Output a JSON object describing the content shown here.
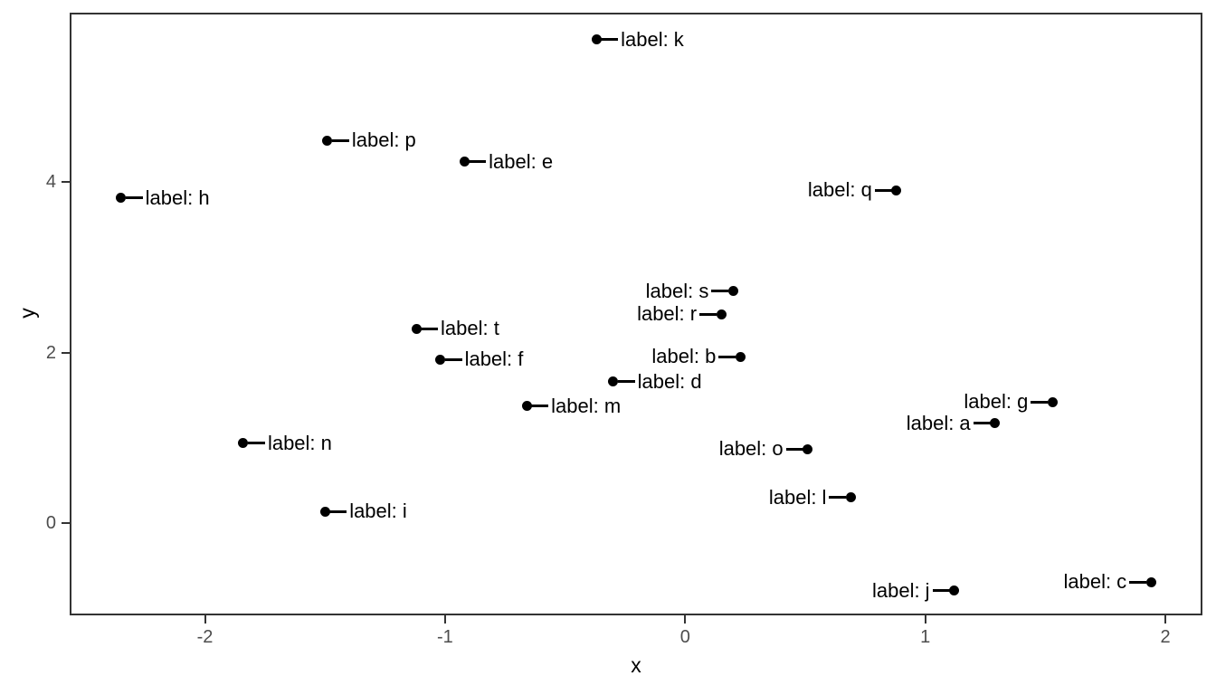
{
  "chart_data": {
    "type": "scatter",
    "title": "",
    "xlabel": "x",
    "ylabel": "y",
    "x_ticks": [
      -2,
      -1,
      0,
      1,
      2
    ],
    "y_ticks": [
      0,
      2,
      4
    ],
    "xlim": [
      -2.56,
      2.16
    ],
    "ylim": [
      -1.07,
      5.98
    ],
    "grid": false,
    "legend": "none",
    "point_color": "#000000",
    "label_color": "#000000",
    "axis_text_color": "#4d4d4d",
    "border_color": "#333333",
    "background": "#ffffff",
    "points": [
      {
        "name": "a",
        "label": "label: a",
        "x": 1.29,
        "y": 1.17,
        "label_side": "left"
      },
      {
        "name": "b",
        "label": "label: b",
        "x": 0.23,
        "y": 1.95,
        "label_side": "left"
      },
      {
        "name": "c",
        "label": "label: c",
        "x": 1.94,
        "y": -0.69,
        "label_side": "left"
      },
      {
        "name": "d",
        "label": "label: d",
        "x": -0.3,
        "y": 1.66,
        "label_side": "right"
      },
      {
        "name": "e",
        "label": "label: e",
        "x": -0.92,
        "y": 4.23,
        "label_side": "right"
      },
      {
        "name": "f",
        "label": "label: f",
        "x": -1.02,
        "y": 1.92,
        "label_side": "right"
      },
      {
        "name": "g",
        "label": "label: g",
        "x": 1.53,
        "y": 1.42,
        "label_side": "left"
      },
      {
        "name": "h",
        "label": "label: h",
        "x": -2.35,
        "y": 3.81,
        "label_side": "right"
      },
      {
        "name": "i",
        "label": "label: i",
        "x": -1.5,
        "y": 0.14,
        "label_side": "right"
      },
      {
        "name": "j",
        "label": "label: j",
        "x": 1.12,
        "y": -0.79,
        "label_side": "left"
      },
      {
        "name": "k",
        "label": "label: k",
        "x": -0.37,
        "y": 5.66,
        "label_side": "right"
      },
      {
        "name": "l",
        "label": "label: l",
        "x": 0.69,
        "y": 0.3,
        "label_side": "left"
      },
      {
        "name": "m",
        "label": "label: m",
        "x": -0.66,
        "y": 1.37,
        "label_side": "right"
      },
      {
        "name": "n",
        "label": "label: n",
        "x": -1.84,
        "y": 0.94,
        "label_side": "right"
      },
      {
        "name": "o",
        "label": "label: o",
        "x": 0.51,
        "y": 0.87,
        "label_side": "left"
      },
      {
        "name": "p",
        "label": "label: p",
        "x": -1.49,
        "y": 4.48,
        "label_side": "right"
      },
      {
        "name": "q",
        "label": "label: q",
        "x": 0.88,
        "y": 3.9,
        "label_side": "left"
      },
      {
        "name": "r",
        "label": "label: r",
        "x": 0.15,
        "y": 2.45,
        "label_side": "left"
      },
      {
        "name": "s",
        "label": "label: s",
        "x": 0.2,
        "y": 2.72,
        "label_side": "left"
      },
      {
        "name": "t",
        "label": "label: t",
        "x": -1.12,
        "y": 2.28,
        "label_side": "right"
      }
    ]
  }
}
